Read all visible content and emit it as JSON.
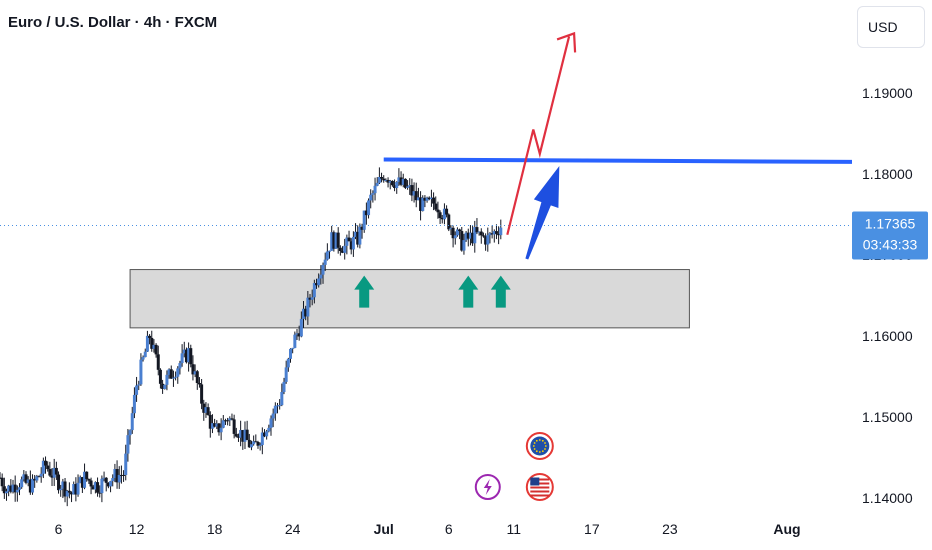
{
  "header": {
    "title": "Euro / U.S. Dollar · 4h · FXCM",
    "currency": "USD"
  },
  "colors": {
    "candle_up": "#4a7fd0",
    "candle_down": "#131722",
    "resistance_line": "#2962ff",
    "forecast_line": "#e03040",
    "forecast_arrow": "#1e4fe0",
    "support_zone_fill": "#d9d9d9",
    "support_arrow": "#089981",
    "price_label_bg": "#4a90e2",
    "current_price_line": "#4a90e2",
    "event_lightning": "#9c27b0",
    "event_eu": "#e53935",
    "event_us": "#e53935"
  },
  "price_label": {
    "price": "1.17365",
    "countdown": "03:43:33"
  },
  "events": [
    {
      "icon": "lightning-icon",
      "x": "2025-07-09"
    },
    {
      "icon": "eu-flag-icon",
      "x": "2025-07-13"
    },
    {
      "icon": "us-flag-icon",
      "x": "2025-07-13"
    }
  ],
  "chart_data": {
    "type": "candlestick",
    "y_ticks": [
      "1.14000",
      "1.15000",
      "1.16000",
      "1.17000",
      "1.18000",
      "1.19000"
    ],
    "ylim": [
      1.1385,
      1.2015
    ],
    "x_ticks": [
      {
        "label": "6",
        "date": "2025-06-06"
      },
      {
        "label": "12",
        "date": "2025-06-12"
      },
      {
        "label": "18",
        "date": "2025-06-18"
      },
      {
        "label": "24",
        "date": "2025-06-24"
      },
      {
        "label": "Jul",
        "date": "2025-07-01"
      },
      {
        "label": "6",
        "date": "2025-07-06"
      },
      {
        "label": "11",
        "date": "2025-07-11"
      },
      {
        "label": "17",
        "date": "2025-07-17"
      },
      {
        "label": "23",
        "date": "2025-07-23"
      },
      {
        "label": "Aug",
        "date": "2025-08-01"
      }
    ],
    "xlim": [
      "2025-06-01T12:00",
      "2025-08-06"
    ],
    "close_path": [
      [
        "2025-06-01T12:00",
        1.1425
      ],
      [
        "2025-06-02",
        1.141
      ],
      [
        "2025-06-03",
        1.142
      ],
      [
        "2025-06-04",
        1.1415
      ],
      [
        "2025-06-05",
        1.144
      ],
      [
        "2025-06-06",
        1.142
      ],
      [
        "2025-06-07",
        1.1405
      ],
      [
        "2025-06-08",
        1.1425
      ],
      [
        "2025-06-09",
        1.1415
      ],
      [
        "2025-06-10",
        1.1425
      ],
      [
        "2025-06-11",
        1.143
      ],
      [
        "2025-06-12",
        1.154
      ],
      [
        "2025-06-13",
        1.16
      ],
      [
        "2025-06-14",
        1.154
      ],
      [
        "2025-06-15",
        1.156
      ],
      [
        "2025-06-16",
        1.158
      ],
      [
        "2025-06-17",
        1.152
      ],
      [
        "2025-06-18",
        1.148
      ],
      [
        "2025-06-19",
        1.15
      ],
      [
        "2025-06-20",
        1.148
      ],
      [
        "2025-06-21",
        1.146
      ],
      [
        "2025-06-22",
        1.149
      ],
      [
        "2025-06-23",
        1.152
      ],
      [
        "2025-06-24",
        1.159
      ],
      [
        "2025-06-25",
        1.163
      ],
      [
        "2025-06-26",
        1.168
      ],
      [
        "2025-06-27",
        1.172
      ],
      [
        "2025-06-28",
        1.171
      ],
      [
        "2025-06-29",
        1.172
      ],
      [
        "2025-06-30",
        1.177
      ],
      [
        "2025-07-01",
        1.18
      ],
      [
        "2025-07-02",
        1.179
      ],
      [
        "2025-07-03",
        1.178
      ],
      [
        "2025-07-04",
        1.176
      ],
      [
        "2025-07-05",
        1.1765
      ],
      [
        "2025-07-06",
        1.174
      ],
      [
        "2025-07-07",
        1.1715
      ],
      [
        "2025-07-08",
        1.1725
      ],
      [
        "2025-07-09",
        1.172
      ],
      [
        "2025-07-10",
        1.1736
      ]
    ],
    "series": [
      {
        "name": "Resistance",
        "type": "line",
        "points": [
          [
            "2025-07-01",
            1.1818
          ],
          [
            "2025-08-06",
            1.1815
          ]
        ]
      },
      {
        "name": "Forecast path",
        "type": "line",
        "points": [
          [
            "2025-07-10T12:00",
            1.1725
          ],
          [
            "2025-07-12T12:00",
            1.1855
          ],
          [
            "2025-07-13",
            1.1825
          ],
          [
            "2025-07-15T06:00",
            1.197
          ]
        ]
      },
      {
        "name": "Projection arrow",
        "type": "arrow",
        "points": [
          [
            "2025-07-12",
            1.1695
          ],
          [
            "2025-07-14T12:00",
            1.181
          ]
        ]
      }
    ],
    "support_zone": {
      "x0": "2025-06-11T12:00",
      "x1": "2025-07-24T12:00",
      "y_low": 1.161,
      "y_high": 1.1682
    },
    "support_arrows": [
      "2025-06-29T12:00",
      "2025-07-07T12:00",
      "2025-07-10"
    ],
    "current_price": 1.17365
  }
}
